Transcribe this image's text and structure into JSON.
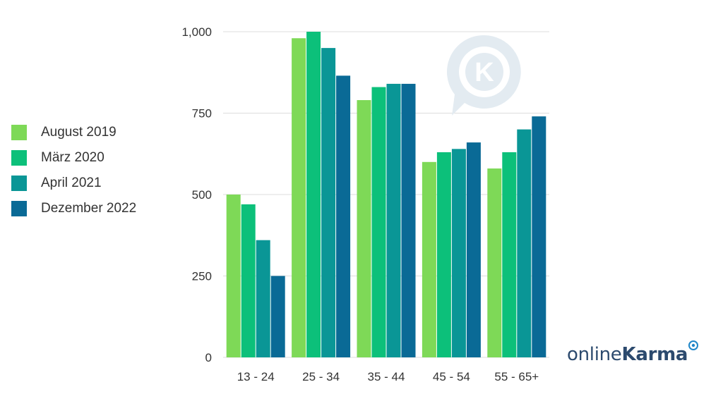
{
  "brand": {
    "name_light": "online",
    "name_bold": "Karma",
    "watermark_letter": "K"
  },
  "chart_data": {
    "type": "bar",
    "categories": [
      "13 - 24",
      "25 - 34",
      "35 - 44",
      "45 - 54",
      "55 - 65+"
    ],
    "series": [
      {
        "name": "August 2019",
        "color": "#7ed957",
        "values": [
          500,
          980,
          790,
          600,
          580
        ]
      },
      {
        "name": "März 2020",
        "color": "#0cc07a",
        "values": [
          470,
          1000,
          830,
          630,
          630
        ]
      },
      {
        "name": "April 2021",
        "color": "#0a9696",
        "values": [
          360,
          950,
          840,
          640,
          700
        ]
      },
      {
        "name": "Dezember 2022",
        "color": "#0a6a96",
        "values": [
          250,
          865,
          840,
          660,
          740
        ]
      }
    ],
    "yticks": [
      "0",
      "250",
      "500",
      "750",
      "1,000"
    ],
    "ytick_values": [
      0,
      250,
      500,
      750,
      1000
    ],
    "ylim": [
      0,
      1000
    ],
    "grid": true,
    "legend_position": "left",
    "title": "",
    "xlabel": "",
    "ylabel": ""
  }
}
